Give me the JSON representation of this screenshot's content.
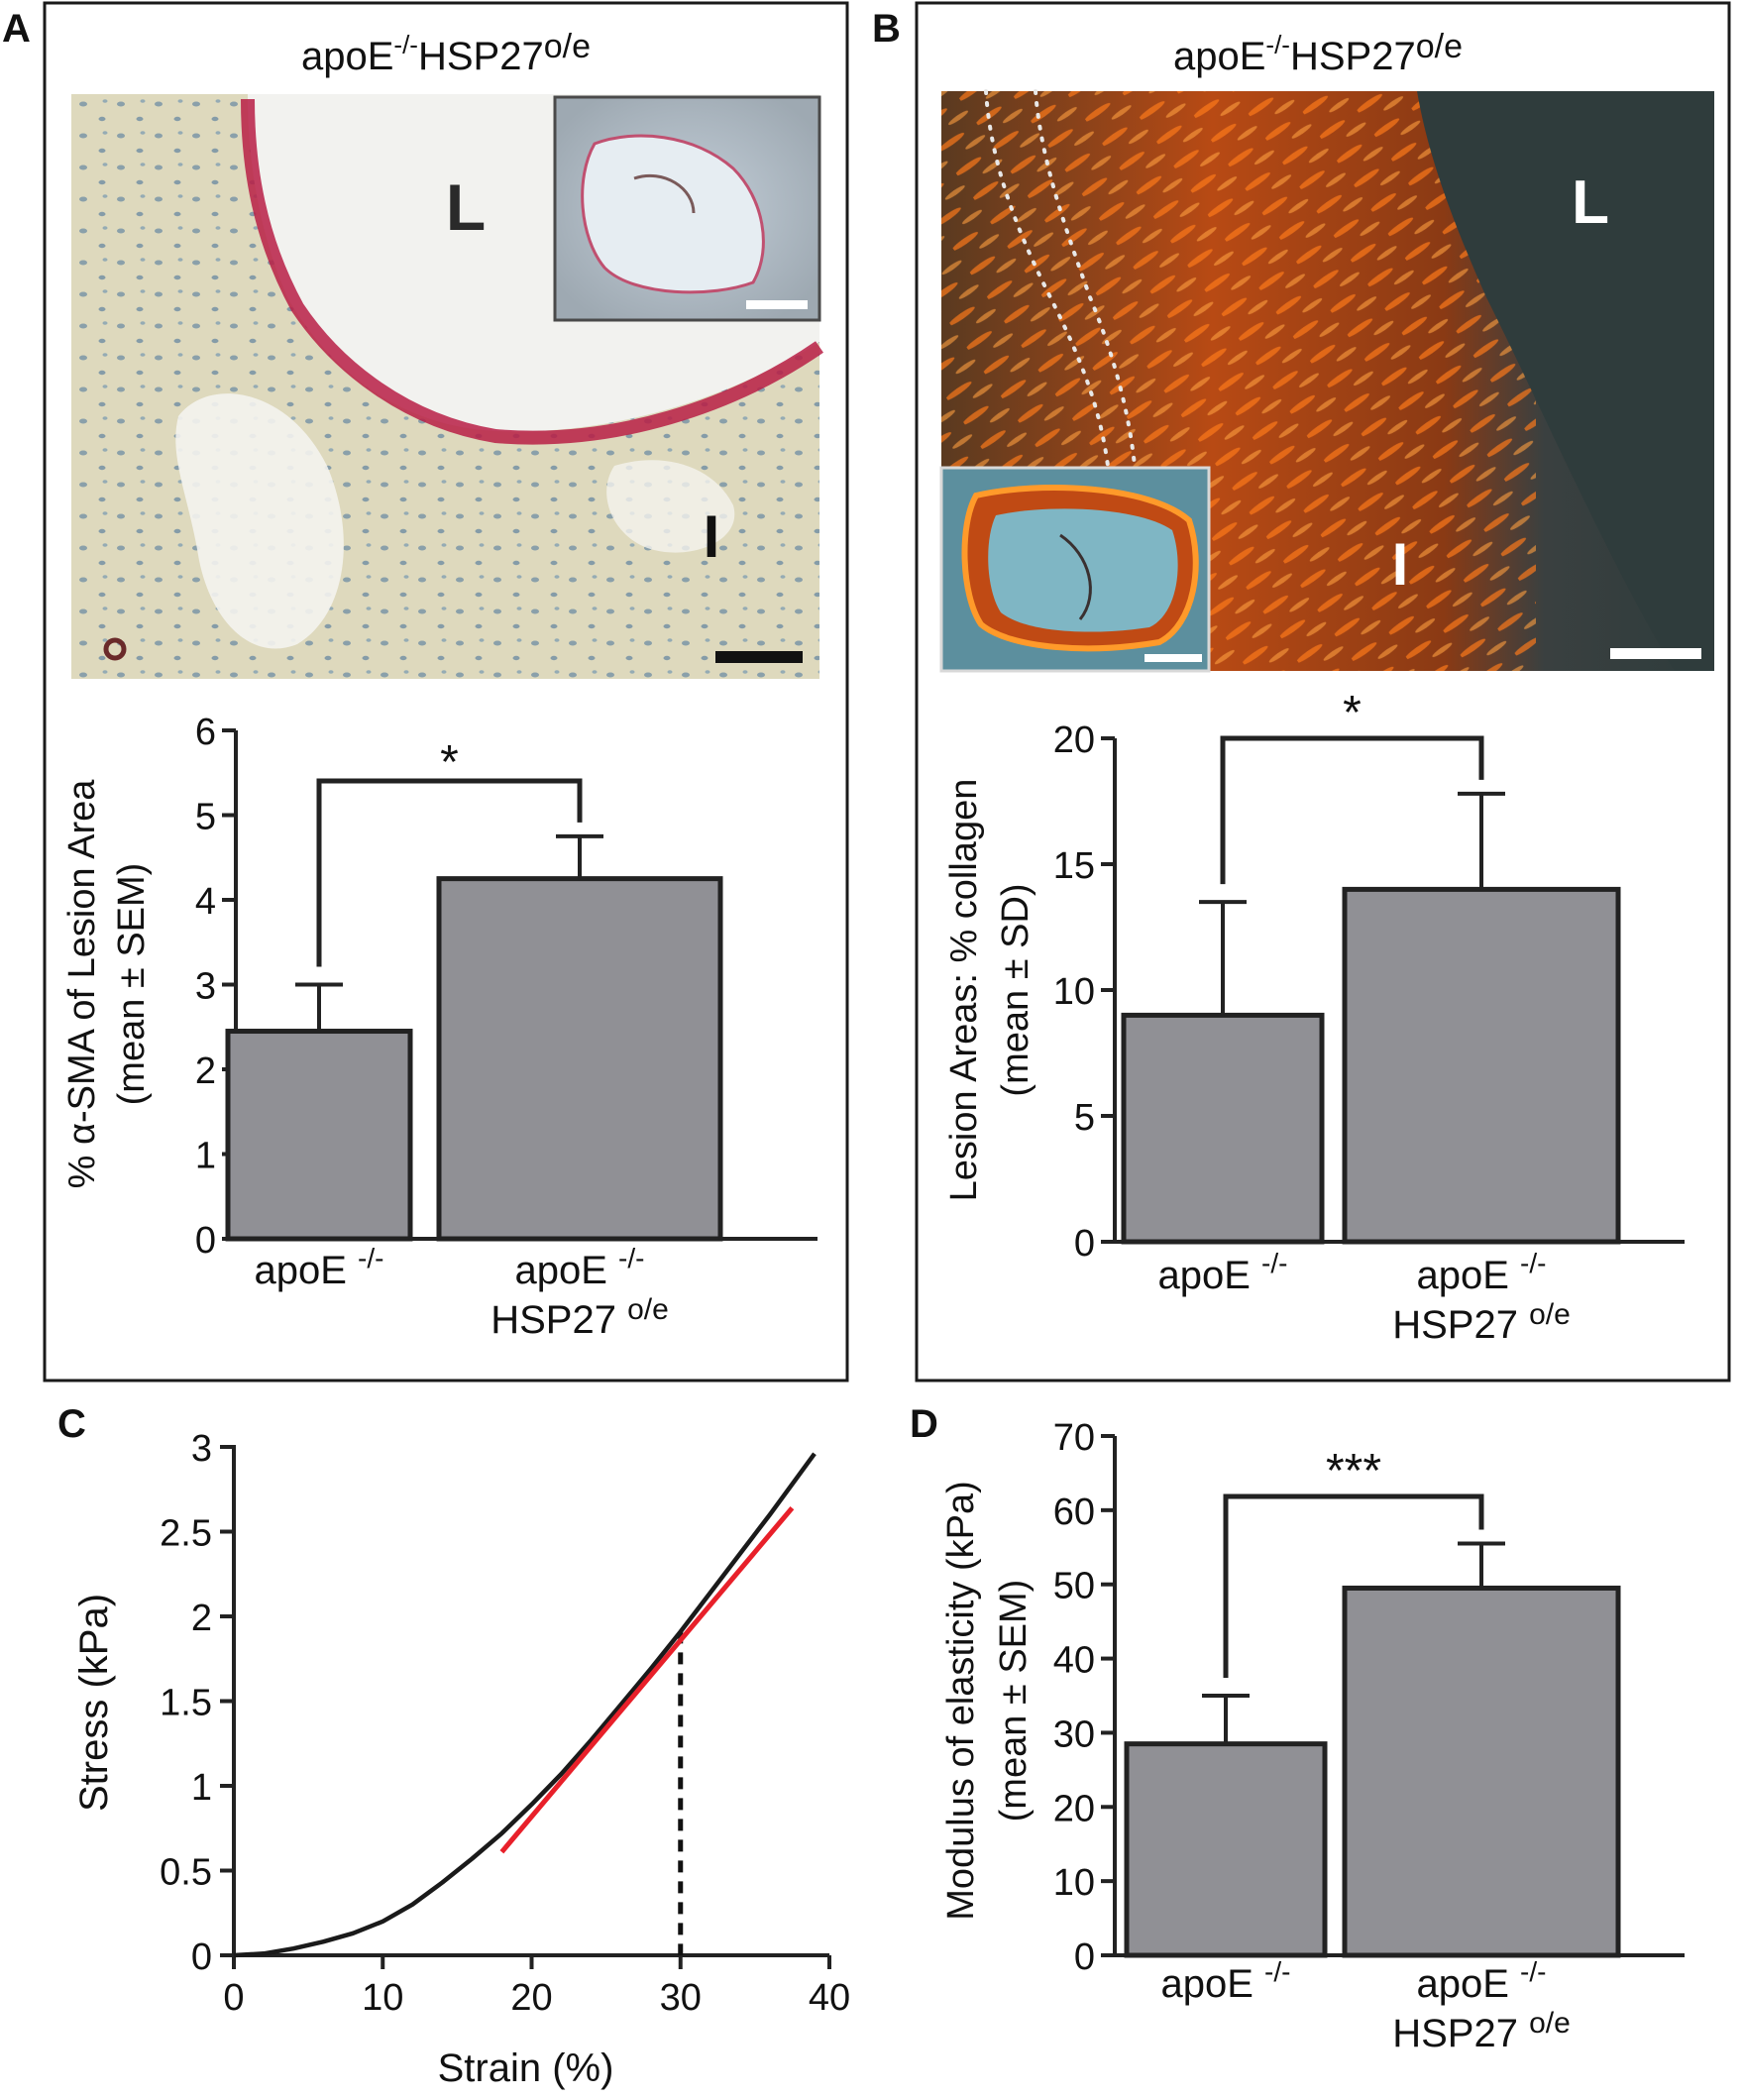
{
  "panels": {
    "A": {
      "letter": "A",
      "title": "apoE",
      "title_sup1": "-/-",
      "title_mid": "HSP27",
      "title_sup2": "o/e",
      "micro_labels": {
        "lumen": "L",
        "intima": "I"
      },
      "significance": "*",
      "colors": {
        "stain": "#b81f45",
        "tissue": "#ddd8b8",
        "nuclei": "#3f6f9a"
      }
    },
    "B": {
      "letter": "B",
      "title": "apoE",
      "title_sup1": "-/-",
      "title_mid": "HSP27",
      "title_sup2": "o/e",
      "micro_labels": {
        "lumen": "L",
        "intima": "I"
      },
      "significance": "*",
      "colors": {
        "collagen": "#e05a10",
        "background": "#2f3f3f"
      }
    },
    "C": {
      "letter": "C"
    },
    "D": {
      "letter": "D",
      "significance": "***"
    }
  },
  "chart_data": [
    {
      "id": "A",
      "type": "bar",
      "categories": [
        {
          "line1": "apoE",
          "sup1": "-/-"
        },
        {
          "line1": "apoE",
          "sup1": "-/-",
          "line2": "HSP27",
          "sup2": "o/e"
        }
      ],
      "values": [
        2.45,
        4.25
      ],
      "errors": [
        0.55,
        0.5
      ],
      "ylabel": "% α-SMA of Lesion Area",
      "ylabel2": "(mean ± SEM)",
      "ylim": [
        0,
        6
      ],
      "yticks": [
        "0",
        "1",
        "2",
        "3",
        "4",
        "5",
        "6"
      ],
      "bar_color": "#909095"
    },
    {
      "id": "B",
      "type": "bar",
      "categories": [
        {
          "line1": "apoE",
          "sup1": "-/-"
        },
        {
          "line1": "apoE",
          "sup1": "-/-",
          "line2": "HSP27",
          "sup2": "o/e"
        }
      ],
      "values": [
        9.0,
        14.0
      ],
      "errors": [
        4.5,
        3.8
      ],
      "ylabel": "Lesion Areas: % collagen",
      "ylabel2": "(mean ± SD)",
      "ylim": [
        0,
        20
      ],
      "yticks": [
        "0",
        "5",
        "10",
        "15",
        "20"
      ],
      "bar_color": "#909095"
    },
    {
      "id": "C",
      "type": "line",
      "xlabel": "Strain (%)",
      "ylabel": "Stress (kPa)",
      "xlim": [
        0,
        40
      ],
      "ylim": [
        0,
        3
      ],
      "xticks": [
        "0",
        "10",
        "20",
        "30",
        "40"
      ],
      "yticks": [
        "0",
        "0.5",
        "1",
        "1.5",
        "2",
        "2.5",
        "3"
      ],
      "series": [
        {
          "x": [
            0,
            2,
            4,
            6,
            8,
            10,
            12,
            14,
            16,
            18,
            20,
            22,
            24,
            26,
            28,
            30,
            32,
            34,
            36,
            38,
            39
          ],
          "y": [
            0,
            0.01,
            0.04,
            0.08,
            0.13,
            0.2,
            0.3,
            0.43,
            0.57,
            0.72,
            0.89,
            1.07,
            1.27,
            1.48,
            1.69,
            1.91,
            2.14,
            2.37,
            2.6,
            2.84,
            2.96
          ],
          "color": "#1a1a1a"
        },
        {
          "x": [
            18,
            37.5
          ],
          "y": [
            0.61,
            2.64
          ],
          "color": "#e8202a"
        }
      ],
      "reference_line": {
        "x": 30,
        "y": 1.91
      }
    },
    {
      "id": "D",
      "type": "bar",
      "categories": [
        {
          "line1": "apoE",
          "sup1": "-/-"
        },
        {
          "line1": "apoE",
          "sup1": "-/-",
          "line2": "HSP27",
          "sup2": "o/e"
        }
      ],
      "values": [
        28.5,
        49.5
      ],
      "errors": [
        6.5,
        6.0
      ],
      "ylabel": "Modulus of elasticity (kPa)",
      "ylabel2": "(mean ± SEM)",
      "ylim": [
        0,
        70
      ],
      "yticks": [
        "0",
        "10",
        "20",
        "30",
        "40",
        "50",
        "60",
        "70"
      ],
      "bar_color": "#909095"
    }
  ]
}
